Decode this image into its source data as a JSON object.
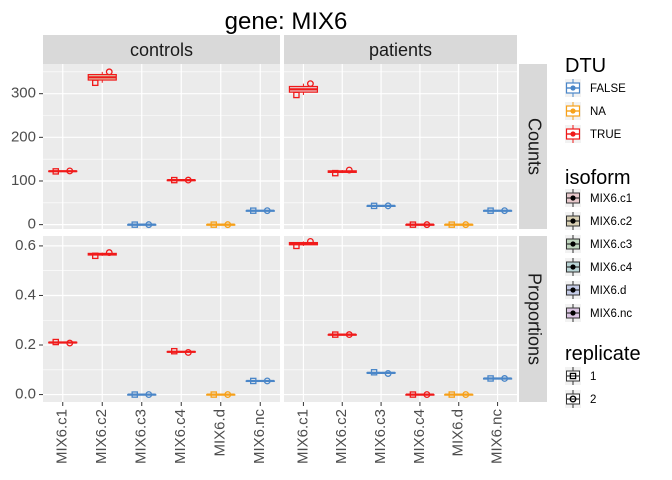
{
  "chart_data": {
    "type": "boxplot-faceted",
    "title": "gene: MIX6",
    "columns": [
      "controls",
      "patients"
    ],
    "rows": [
      "Counts",
      "Proportions"
    ],
    "categories": [
      "MIX6.c1",
      "MIX6.c2",
      "MIX6.c3",
      "MIX6.c4",
      "MIX6.d",
      "MIX6.nc"
    ],
    "dtu": [
      "TRUE",
      "TRUE",
      "FALSE",
      "TRUE",
      "NA",
      "FALSE"
    ],
    "axes": {
      "Counts": {
        "ylim": [
          -10,
          368
        ],
        "ticks": [
          0,
          100,
          200,
          300
        ],
        "tick_labels": [
          "0",
          "100",
          "200",
          "300"
        ]
      },
      "Proportions": {
        "ylim": [
          -0.03,
          0.64
        ],
        "ticks": [
          0.0,
          0.2,
          0.4,
          0.6
        ],
        "tick_labels": [
          "0.0",
          "0.2",
          "0.4",
          "0.6"
        ]
      }
    },
    "panels": {
      "controls": {
        "Counts": {
          "rep1": [
            122,
            325,
            0,
            102,
            0,
            32
          ],
          "rep2": [
            123,
            350,
            0,
            102,
            0,
            32
          ]
        },
        "Proportions": {
          "rep1": [
            0.212,
            0.56,
            0.0,
            0.175,
            0.0,
            0.055
          ],
          "rep2": [
            0.208,
            0.573,
            0.0,
            0.17,
            0.0,
            0.055
          ]
        }
      },
      "patients": {
        "Counts": {
          "rep1": [
            297,
            118,
            43,
            0,
            0,
            32
          ],
          "rep2": [
            323,
            125,
            43,
            0,
            0,
            32
          ]
        },
        "Proportions": {
          "rep1": [
            0.6,
            0.242,
            0.09,
            0.0,
            0.0,
            0.065
          ],
          "rep2": [
            0.618,
            0.242,
            0.085,
            0.0,
            0.0,
            0.065
          ]
        }
      }
    },
    "legend": {
      "placement": "right",
      "dtu": {
        "title": "DTU",
        "items": [
          {
            "label": "FALSE",
            "color": "#4A86C8"
          },
          {
            "label": "NA",
            "color": "#F7A11A"
          },
          {
            "label": "TRUE",
            "color": "#F01A1A"
          }
        ]
      },
      "isoform": {
        "title": "isoform",
        "items": [
          {
            "label": "MIX6.c1",
            "fill": "#E8C9CC"
          },
          {
            "label": "MIX6.c2",
            "fill": "#D9D0B4"
          },
          {
            "label": "MIX6.c3",
            "fill": "#BFD5BE"
          },
          {
            "label": "MIX6.c4",
            "fill": "#BAD5D6"
          },
          {
            "label": "MIX6.d",
            "fill": "#C4CBE6"
          },
          {
            "label": "MIX6.nc",
            "fill": "#DCC6E4"
          }
        ]
      },
      "replicate": {
        "title": "replicate",
        "items": [
          {
            "label": "1",
            "shape": "square"
          },
          {
            "label": "2",
            "shape": "circle"
          }
        ]
      }
    },
    "colors": {
      "panel_bg": "#EBEBEB",
      "grid": "#FFFFFF",
      "strip_bg": "#D9D9D9",
      "text": "#000000",
      "tick_text": "#4D4D4D"
    },
    "grid": true
  }
}
